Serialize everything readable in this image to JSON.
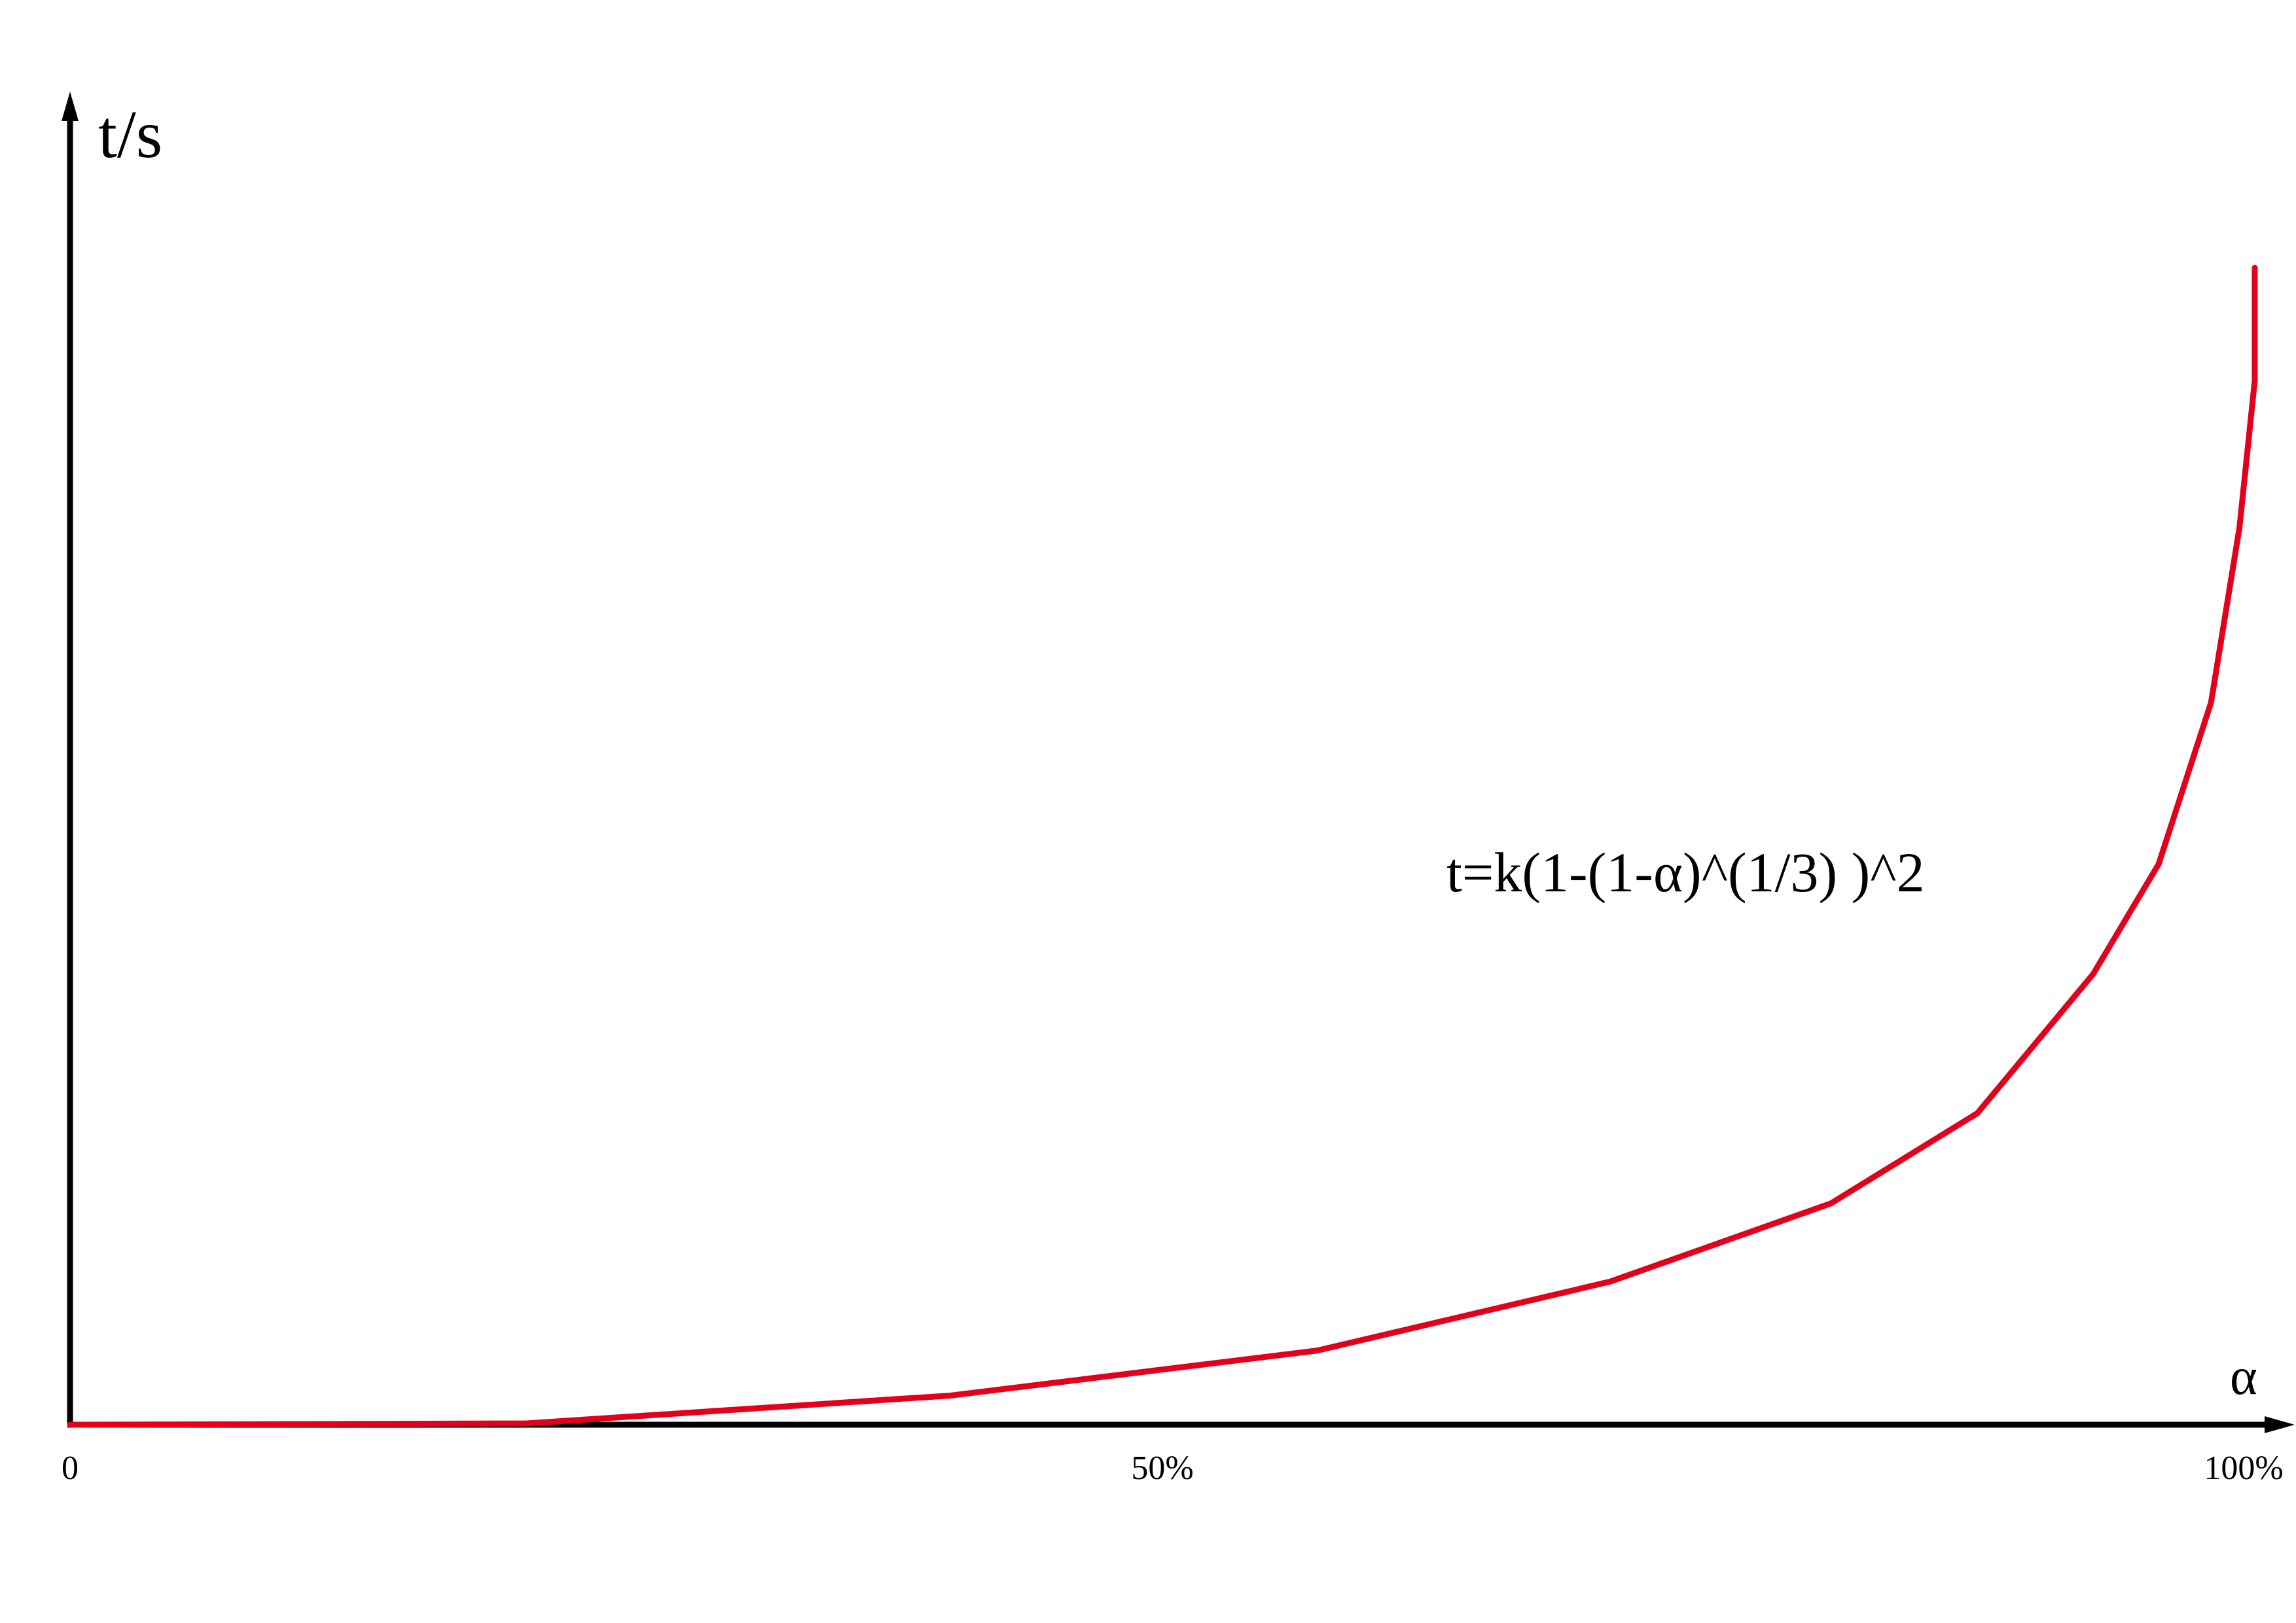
{
  "chart_data": {
    "type": "line",
    "x_label": "α",
    "y_label": "t/s",
    "annotation": "t=k(1-(1-α)^(1/3) )^2",
    "xlim": [
      0,
      100
    ],
    "xticks": [
      0,
      {
        "value": 50,
        "label": "50%"
      },
      {
        "value": 100,
        "label": "100%"
      }
    ],
    "ylim": [
      0,
      100
    ],
    "grid": false,
    "series": [
      {
        "color": "#e3001b",
        "x": [
          0,
          20.9,
          40.3,
          57.1,
          70.5,
          80.6,
          87.3,
          92.6,
          95.6,
          98.0,
          99.3,
          100,
          100
        ],
        "values": [
          0,
          0.1,
          2.2,
          5.6,
          10.8,
          16.7,
          23.5,
          34.0,
          42.3,
          54.5,
          67.7,
          78.8,
          87.3
        ]
      }
    ]
  }
}
